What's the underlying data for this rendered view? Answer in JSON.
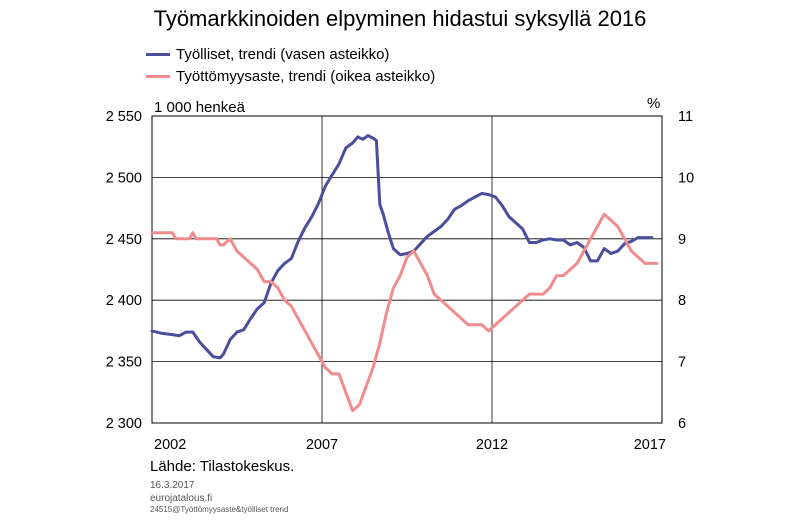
{
  "chart_data": {
    "type": "line",
    "title": "Työmarkkinoiden elpyminen hidastui syksyllä 2016",
    "left_axis": {
      "unit_label": "1 000 henkeä",
      "ylim": [
        2300,
        2550
      ],
      "ticks": [
        2300,
        2350,
        2400,
        2450,
        2500,
        2550
      ],
      "tick_labels": [
        "2 300",
        "2 350",
        "2 400",
        "2 450",
        "2 500",
        "2 550"
      ]
    },
    "right_axis": {
      "unit_label": "%",
      "ylim": [
        6,
        11
      ],
      "ticks": [
        6,
        7,
        8,
        9,
        10,
        11
      ],
      "tick_labels": [
        "6",
        "7",
        "8",
        "9",
        "10",
        "11"
      ]
    },
    "x_axis": {
      "xlim": [
        2002,
        2017
      ],
      "tick_labels": [
        "2002",
        "2007",
        "2012",
        "2017"
      ],
      "tick_values": [
        2002,
        2007,
        2012,
        2017
      ]
    },
    "grid": "horizontal gridlines and vertical year separators",
    "series": [
      {
        "name": "Työlliset, trendi (vasen asteikko)",
        "axis": "left",
        "color": "#4a4e9e",
        "points": [
          [
            2002.0,
            2375
          ],
          [
            2002.3,
            2373
          ],
          [
            2002.6,
            2372
          ],
          [
            2002.8,
            2371
          ],
          [
            2003.0,
            2374
          ],
          [
            2003.2,
            2374
          ],
          [
            2003.4,
            2366
          ],
          [
            2003.6,
            2360
          ],
          [
            2003.8,
            2354
          ],
          [
            2004.0,
            2353
          ],
          [
            2004.1,
            2356
          ],
          [
            2004.3,
            2368
          ],
          [
            2004.5,
            2374
          ],
          [
            2004.7,
            2376
          ],
          [
            2004.9,
            2385
          ],
          [
            2005.1,
            2393
          ],
          [
            2005.3,
            2398
          ],
          [
            2005.5,
            2414
          ],
          [
            2005.7,
            2424
          ],
          [
            2005.9,
            2430
          ],
          [
            2006.1,
            2434
          ],
          [
            2006.3,
            2448
          ],
          [
            2006.5,
            2459
          ],
          [
            2006.7,
            2468
          ],
          [
            2006.9,
            2479
          ],
          [
            2007.1,
            2493
          ],
          [
            2007.3,
            2502
          ],
          [
            2007.5,
            2511
          ],
          [
            2007.7,
            2524
          ],
          [
            2007.9,
            2528
          ],
          [
            2008.05,
            2533
          ],
          [
            2008.2,
            2531
          ],
          [
            2008.35,
            2534
          ],
          [
            2008.5,
            2532
          ],
          [
            2008.6,
            2530
          ],
          [
            2008.7,
            2478
          ],
          [
            2008.8,
            2470
          ],
          [
            2008.95,
            2455
          ],
          [
            2009.1,
            2442
          ],
          [
            2009.3,
            2437
          ],
          [
            2009.5,
            2438
          ],
          [
            2009.7,
            2440
          ],
          [
            2009.9,
            2446
          ],
          [
            2010.1,
            2452
          ],
          [
            2010.3,
            2456
          ],
          [
            2010.5,
            2460
          ],
          [
            2010.7,
            2466
          ],
          [
            2010.9,
            2474
          ],
          [
            2011.1,
            2477
          ],
          [
            2011.3,
            2481
          ],
          [
            2011.5,
            2484
          ],
          [
            2011.7,
            2487
          ],
          [
            2011.9,
            2486
          ],
          [
            2012.1,
            2484
          ],
          [
            2012.3,
            2477
          ],
          [
            2012.5,
            2468
          ],
          [
            2012.7,
            2463
          ],
          [
            2012.9,
            2458
          ],
          [
            2013.1,
            2447
          ],
          [
            2013.3,
            2447
          ],
          [
            2013.5,
            2449
          ],
          [
            2013.7,
            2450
          ],
          [
            2013.9,
            2449
          ],
          [
            2014.1,
            2449
          ],
          [
            2014.3,
            2445
          ],
          [
            2014.5,
            2447
          ],
          [
            2014.7,
            2443
          ],
          [
            2014.9,
            2432
          ],
          [
            2015.1,
            2432
          ],
          [
            2015.3,
            2442
          ],
          [
            2015.5,
            2438
          ],
          [
            2015.7,
            2440
          ],
          [
            2015.9,
            2446
          ],
          [
            2016.1,
            2448
          ],
          [
            2016.3,
            2451
          ],
          [
            2016.5,
            2451
          ],
          [
            2016.7,
            2451
          ]
        ]
      },
      {
        "name": "Työttömyysaste, trendi (oikea asteikko)",
        "axis": "right",
        "color": "#f08c8c",
        "points": [
          [
            2002.0,
            9.1
          ],
          [
            2002.3,
            9.1
          ],
          [
            2002.6,
            9.1
          ],
          [
            2002.7,
            9.0
          ],
          [
            2002.9,
            9.0
          ],
          [
            2003.1,
            9.0
          ],
          [
            2003.2,
            9.1
          ],
          [
            2003.3,
            9.0
          ],
          [
            2003.6,
            9.0
          ],
          [
            2003.9,
            9.0
          ],
          [
            2004.0,
            8.9
          ],
          [
            2004.1,
            8.9
          ],
          [
            2004.3,
            9.0
          ],
          [
            2004.5,
            8.8
          ],
          [
            2004.7,
            8.7
          ],
          [
            2004.9,
            8.6
          ],
          [
            2005.1,
            8.5
          ],
          [
            2005.3,
            8.3
          ],
          [
            2005.5,
            8.3
          ],
          [
            2005.7,
            8.2
          ],
          [
            2005.9,
            8.0
          ],
          [
            2006.1,
            7.9
          ],
          [
            2006.3,
            7.7
          ],
          [
            2006.5,
            7.5
          ],
          [
            2006.7,
            7.3
          ],
          [
            2006.9,
            7.1
          ],
          [
            2007.1,
            6.9
          ],
          [
            2007.3,
            6.8
          ],
          [
            2007.5,
            6.8
          ],
          [
            2007.7,
            6.5
          ],
          [
            2007.9,
            6.2
          ],
          [
            2008.1,
            6.3
          ],
          [
            2008.3,
            6.6
          ],
          [
            2008.5,
            6.9
          ],
          [
            2008.7,
            7.3
          ],
          [
            2008.9,
            7.8
          ],
          [
            2009.1,
            8.2
          ],
          [
            2009.3,
            8.4
          ],
          [
            2009.5,
            8.7
          ],
          [
            2009.7,
            8.8
          ],
          [
            2009.9,
            8.6
          ],
          [
            2010.1,
            8.4
          ],
          [
            2010.3,
            8.1
          ],
          [
            2010.5,
            8.0
          ],
          [
            2010.7,
            7.9
          ],
          [
            2010.9,
            7.8
          ],
          [
            2011.1,
            7.7
          ],
          [
            2011.3,
            7.6
          ],
          [
            2011.5,
            7.6
          ],
          [
            2011.7,
            7.6
          ],
          [
            2011.9,
            7.5
          ],
          [
            2012.1,
            7.6
          ],
          [
            2012.3,
            7.7
          ],
          [
            2012.5,
            7.8
          ],
          [
            2012.7,
            7.9
          ],
          [
            2012.9,
            8.0
          ],
          [
            2013.1,
            8.1
          ],
          [
            2013.3,
            8.1
          ],
          [
            2013.5,
            8.1
          ],
          [
            2013.7,
            8.2
          ],
          [
            2013.9,
            8.4
          ],
          [
            2014.1,
            8.4
          ],
          [
            2014.3,
            8.5
          ],
          [
            2014.5,
            8.6
          ],
          [
            2014.7,
            8.8
          ],
          [
            2014.9,
            9.0
          ],
          [
            2015.1,
            9.2
          ],
          [
            2015.3,
            9.4
          ],
          [
            2015.5,
            9.3
          ],
          [
            2015.7,
            9.2
          ],
          [
            2015.9,
            9.0
          ],
          [
            2016.1,
            8.8
          ],
          [
            2016.3,
            8.7
          ],
          [
            2016.5,
            8.6
          ],
          [
            2016.7,
            8.6
          ],
          [
            2016.85,
            8.6
          ]
        ]
      }
    ],
    "source": "Lähde:  Tilastokeskus.",
    "footer": [
      "16.3.2017",
      "eurojatalous.fi",
      "24515@Työttömyysaste&työlliset trend"
    ]
  }
}
